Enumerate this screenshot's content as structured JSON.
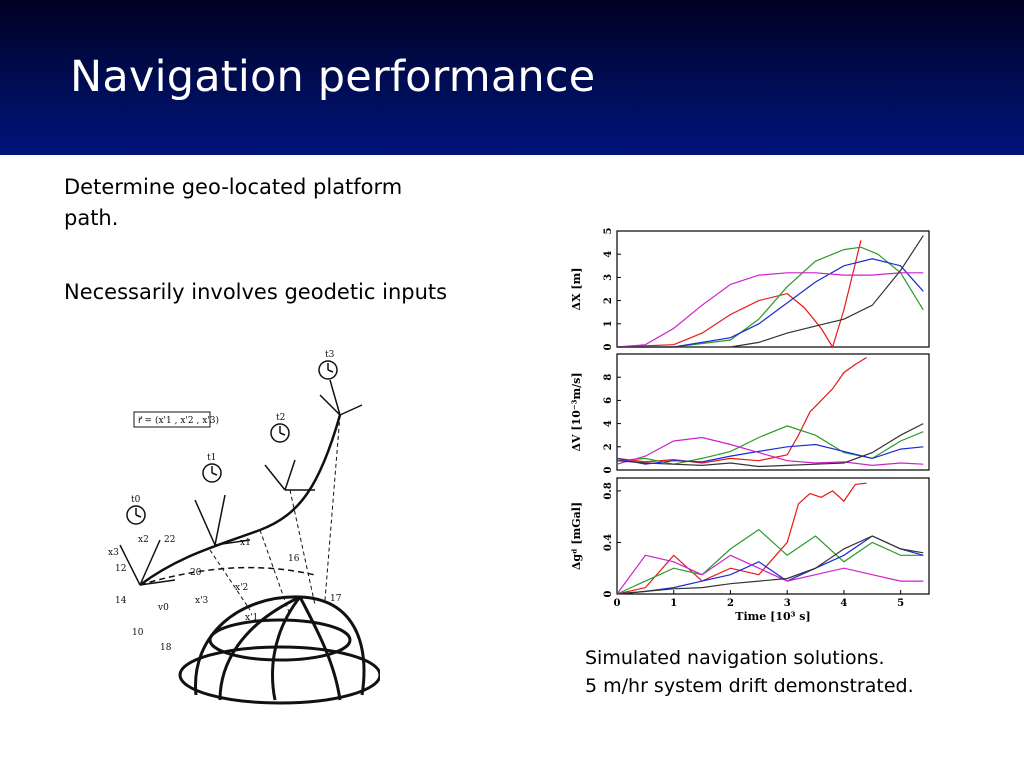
{
  "slide": {
    "title": "Navigation performance",
    "bullets": [
      "Determine geo-located platform path.",
      "Necessarily involves geodetic inputs"
    ],
    "caption": [
      "Simulated navigation solutions.",
      "5 m/hr system drift demonstrated."
    ]
  },
  "diagram": {
    "labels": [
      "t0",
      "t1",
      "t2",
      "t3",
      "x1",
      "x2",
      "x3",
      "x'1",
      "x'2",
      "x'3",
      "v0",
      "10",
      "12",
      "14",
      "16",
      "17",
      "18",
      "20",
      "22"
    ],
    "formula": "r⃗ = (x'1 , x'2 , x'3)"
  },
  "colors": {
    "header_top": "#000022",
    "header_bottom": "#00137a",
    "series": [
      "#e81818",
      "#2a9a2a",
      "#1c2ad6",
      "#cc22cc",
      "#333333"
    ]
  },
  "chart_data": [
    {
      "type": "line",
      "ylabel": "ΔX [m]",
      "ylim": [
        0,
        5
      ],
      "yticks": [
        0,
        1,
        2,
        3,
        4,
        5
      ],
      "xlim": [
        0,
        5.5
      ],
      "series": [
        {
          "color": "#e81818",
          "x": [
            0,
            1,
            1.5,
            2,
            2.5,
            3,
            3.3,
            3.6,
            3.8,
            4,
            4.2,
            4.3
          ],
          "y": [
            0,
            0.1,
            0.6,
            1.4,
            2.0,
            2.3,
            1.7,
            0.8,
            0.0,
            1.6,
            3.6,
            4.6
          ]
        },
        {
          "color": "#2a9a2a",
          "x": [
            0,
            1,
            2,
            2.5,
            3,
            3.5,
            4,
            4.3,
            4.6,
            5,
            5.4
          ],
          "y": [
            0,
            0,
            0.3,
            1.2,
            2.6,
            3.7,
            4.2,
            4.3,
            4.0,
            3.2,
            1.6
          ]
        },
        {
          "color": "#1c2ad6",
          "x": [
            0,
            1,
            2,
            2.5,
            3,
            3.5,
            4,
            4.5,
            5,
            5.4
          ],
          "y": [
            0,
            0,
            0.4,
            1.0,
            1.9,
            2.8,
            3.5,
            3.8,
            3.5,
            2.4
          ]
        },
        {
          "color": "#cc22cc",
          "x": [
            0,
            0.5,
            1,
            1.5,
            2,
            2.5,
            3,
            3.5,
            4,
            4.5,
            5,
            5.4
          ],
          "y": [
            0,
            0.1,
            0.8,
            1.8,
            2.7,
            3.1,
            3.2,
            3.2,
            3.1,
            3.1,
            3.2,
            3.2
          ]
        },
        {
          "color": "#333333",
          "x": [
            0,
            1,
            2,
            2.5,
            3,
            3.5,
            4,
            4.5,
            5,
            5.4
          ],
          "y": [
            0,
            0,
            0,
            0.2,
            0.6,
            0.9,
            1.2,
            1.8,
            3.3,
            4.8
          ]
        }
      ]
    },
    {
      "type": "line",
      "ylabel": "ΔV [10⁻³m/s]",
      "ylim": [
        0,
        10
      ],
      "yticks": [
        0,
        2,
        4,
        6,
        8
      ],
      "xlim": [
        0,
        5.5
      ],
      "series": [
        {
          "color": "#e81818",
          "x": [
            0,
            0.5,
            1,
            1.5,
            2,
            2.5,
            3,
            3.2,
            3.4,
            3.6,
            3.8,
            4,
            4.2,
            4.4
          ],
          "y": [
            1,
            0.7,
            0.9,
            0.6,
            1.0,
            0.8,
            1.3,
            3.0,
            5.0,
            6.0,
            7.0,
            8.4,
            9.1,
            9.7
          ]
        },
        {
          "color": "#2a9a2a",
          "x": [
            0,
            0.5,
            1,
            1.5,
            2,
            2.5,
            3,
            3.5,
            4,
            4.5,
            5,
            5.4
          ],
          "y": [
            0.8,
            1.0,
            0.5,
            1.0,
            1.6,
            2.8,
            3.8,
            3.0,
            1.5,
            1.0,
            2.5,
            3.3
          ]
        },
        {
          "color": "#1c2ad6",
          "x": [
            0,
            0.5,
            1,
            1.5,
            2,
            2.5,
            3,
            3.5,
            4,
            4.5,
            5,
            5.4
          ],
          "y": [
            1.0,
            0.5,
            0.8,
            0.7,
            1.2,
            1.6,
            2.0,
            2.2,
            1.6,
            1.0,
            1.8,
            2.0
          ]
        },
        {
          "color": "#cc22cc",
          "x": [
            0,
            0.5,
            1,
            1.5,
            2,
            2.5,
            3,
            3.5,
            4,
            4.5,
            5,
            5.4
          ],
          "y": [
            0.5,
            1.2,
            2.5,
            2.8,
            2.2,
            1.5,
            0.8,
            0.6,
            0.7,
            0.4,
            0.6,
            0.5
          ]
        },
        {
          "color": "#333333",
          "x": [
            0,
            0.5,
            1,
            1.5,
            2,
            2.5,
            3,
            3.5,
            4,
            4.5,
            5,
            5.4
          ],
          "y": [
            0.8,
            0.6,
            0.5,
            0.4,
            0.6,
            0.3,
            0.4,
            0.5,
            0.6,
            1.5,
            3.0,
            4.0
          ]
        }
      ]
    },
    {
      "type": "line",
      "ylabel": "Δgᵈ [mGal]",
      "xlabel": "Time [10³ s]",
      "ylim": [
        0,
        0.9
      ],
      "yticks": [
        0,
        0.4,
        0.8
      ],
      "xticks": [
        0,
        1,
        2,
        3,
        4,
        5
      ],
      "xlim": [
        0,
        5.5
      ],
      "series": [
        {
          "color": "#e81818",
          "x": [
            0,
            0.5,
            1,
            1.5,
            2,
            2.5,
            3,
            3.2,
            3.4,
            3.6,
            3.8,
            4,
            4.2,
            4.4
          ],
          "y": [
            0,
            0.05,
            0.3,
            0.1,
            0.2,
            0.15,
            0.4,
            0.7,
            0.78,
            0.75,
            0.8,
            0.72,
            0.85,
            0.86
          ]
        },
        {
          "color": "#2a9a2a",
          "x": [
            0,
            0.5,
            1,
            1.5,
            2,
            2.5,
            3,
            3.5,
            4,
            4.5,
            5,
            5.4
          ],
          "y": [
            0,
            0.1,
            0.2,
            0.15,
            0.35,
            0.5,
            0.3,
            0.45,
            0.25,
            0.4,
            0.3,
            0.3
          ]
        },
        {
          "color": "#1c2ad6",
          "x": [
            0,
            0.5,
            1,
            1.5,
            2,
            2.5,
            3,
            3.5,
            4,
            4.5,
            5,
            5.4
          ],
          "y": [
            0,
            0.02,
            0.05,
            0.1,
            0.15,
            0.25,
            0.1,
            0.2,
            0.3,
            0.45,
            0.35,
            0.3
          ]
        },
        {
          "color": "#cc22cc",
          "x": [
            0,
            0.5,
            1,
            1.5,
            2,
            2.5,
            3,
            3.5,
            4,
            4.5,
            5,
            5.4
          ],
          "y": [
            0,
            0.3,
            0.25,
            0.15,
            0.3,
            0.2,
            0.1,
            0.15,
            0.2,
            0.15,
            0.1,
            0.1
          ]
        },
        {
          "color": "#333333",
          "x": [
            0,
            0.5,
            1,
            1.5,
            2,
            2.5,
            3,
            3.5,
            4,
            4.5,
            5,
            5.4
          ],
          "y": [
            0,
            0.02,
            0.04,
            0.05,
            0.08,
            0.1,
            0.12,
            0.2,
            0.35,
            0.45,
            0.35,
            0.32
          ]
        }
      ]
    }
  ]
}
